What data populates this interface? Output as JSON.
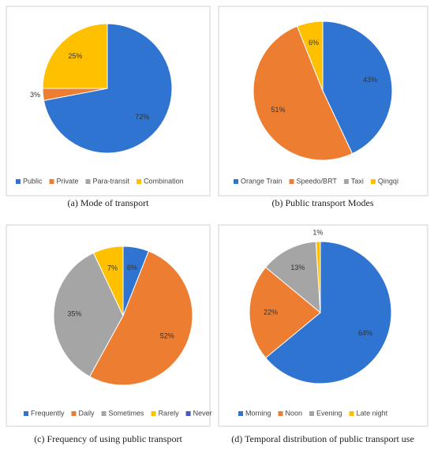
{
  "chart_data": [
    {
      "type": "pie",
      "title": "(a)  Mode of transport",
      "categories": [
        "Public",
        "Private",
        "Para-transit",
        "Combination"
      ],
      "values": [
        72,
        3,
        0,
        25
      ],
      "value_labels": [
        "72%",
        "3%",
        null,
        "25%"
      ],
      "colors": [
        "#2f74d0",
        "#ed7d31",
        "#a5a5a5",
        "#ffc000"
      ]
    },
    {
      "type": "pie",
      "title": "(b) Public transport Modes",
      "categories": [
        "Orange Train",
        "Speedo/BRT",
        "Taxi",
        "Qingqi"
      ],
      "values": [
        43,
        51,
        0,
        6
      ],
      "value_labels": [
        "43%",
        "51%",
        null,
        "6%"
      ],
      "colors": [
        "#2f74d0",
        "#ed7d31",
        "#a5a5a5",
        "#ffc000"
      ]
    },
    {
      "type": "pie",
      "title": "(c) Frequency of using public transport",
      "categories": [
        "Frequently",
        "Daily",
        "Sometimes",
        "Rarely",
        "Never"
      ],
      "values": [
        6,
        52,
        35,
        7,
        0
      ],
      "value_labels": [
        "6%",
        "52%",
        "35%",
        "7%",
        null
      ],
      "colors": [
        "#2f74d0",
        "#ed7d31",
        "#a5a5a5",
        "#ffc000",
        "#4a56c8"
      ]
    },
    {
      "type": "pie",
      "title": "(d) Temporal distribution of public transport use",
      "categories": [
        "Morning",
        "Noon",
        "Evening",
        "Late night"
      ],
      "values": [
        64,
        22,
        13,
        1
      ],
      "value_labels": [
        "64%",
        "22%",
        "13%",
        "1%"
      ],
      "colors": [
        "#2f74d0",
        "#ed7d31",
        "#a5a5a5",
        "#ffc000"
      ]
    }
  ]
}
